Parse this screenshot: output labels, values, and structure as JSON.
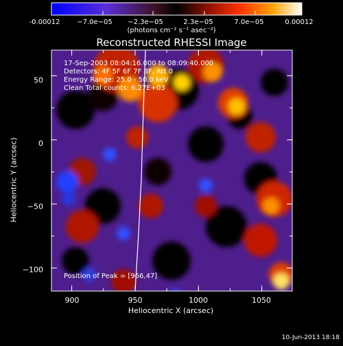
{
  "colorbar": {
    "ticks": [
      "-0.00012",
      "−7.0e−05",
      "−2.3e−05",
      "2.3e−05",
      "7.0e−05",
      "0.00012"
    ],
    "units": "(photons cm⁻² s⁻¹ asec⁻²)"
  },
  "plot": {
    "title": "Reconstructed RHESSI Image",
    "xlabel": "Heliocentric X (arcsec)",
    "ylabel": "Heliocentric Y (arcsec)",
    "xticks": [
      "900",
      "950",
      "1000",
      "1050"
    ],
    "yticks": [
      "50",
      "0",
      "−50",
      "−100"
    ]
  },
  "annotations": {
    "time": "17-Sep-2003 08:04:16.000 to 08:09:40.000",
    "detectors": "Detectors: 4F 5F 6F 7F 8F, Att 0",
    "energy": "Energy Range: 25.0 - 50.0 keV",
    "clean": "Clean     Total counts: 6.27E+03",
    "peak": "Position of Peak = [966,47]"
  },
  "footer": {
    "date": "10-Jun-2013 18:18"
  },
  "chart_data": {
    "type": "heatmap",
    "x_range": [
      884,
      1074
    ],
    "y_range": [
      -118,
      70
    ],
    "xticks": [
      900,
      950,
      1000,
      1050
    ],
    "yticks": [
      50,
      0,
      -50,
      -100
    ],
    "colorbar_range": [
      -0.00012,
      0.00012
    ],
    "peak": [
      966,
      47
    ]
  }
}
